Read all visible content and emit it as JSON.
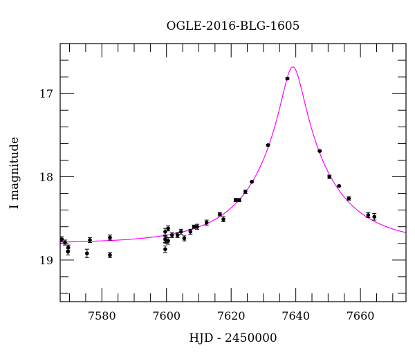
{
  "chart_data": {
    "type": "scatter",
    "title": "OGLE-2016-BLG-1605",
    "xlabel": "HJD - 2450000",
    "ylabel": "I magnitude",
    "xlim": [
      7567.1,
      7674.1
    ],
    "ylim": [
      19.5,
      16.4
    ],
    "y_inverted": true,
    "x_ticks": [
      7580,
      7600,
      7620,
      7640,
      7660
    ],
    "x_tick_labels": [
      "7580",
      "7600",
      "7620",
      "7640",
      "7660"
    ],
    "x_minor_step": 5,
    "y_ticks": [
      17,
      18,
      19
    ],
    "y_tick_labels": [
      "17",
      "18",
      "19"
    ],
    "y_minor_step": 0.2,
    "grid": false,
    "series": [
      {
        "name": "data",
        "kind": "points_with_errorbars",
        "color": "#000000",
        "x": [
          7567.6,
          7568.6,
          7569.6,
          7569.5,
          7575.4,
          7576.3,
          7582.5,
          7582.5,
          7599.6,
          7599.6,
          7599.7,
          7599.6,
          7600.5,
          7600.5,
          7601.7,
          7603.4,
          7604.5,
          7605.5,
          7607.4,
          7608.5,
          7609.5,
          7612.4,
          7616.5,
          7617.6,
          7621.4,
          7622.5,
          7624.4,
          7626.4,
          7631.4,
          7637.4,
          7647.4,
          7650.4,
          7653.4,
          7656.4,
          7662.4,
          7664.3
        ],
        "y": [
          18.75,
          18.79,
          18.85,
          18.9,
          18.92,
          18.76,
          18.73,
          18.94,
          18.66,
          18.75,
          18.76,
          18.87,
          18.62,
          18.77,
          18.7,
          18.7,
          18.66,
          18.74,
          18.66,
          18.6,
          18.6,
          18.55,
          18.45,
          18.51,
          18.28,
          18.28,
          18.18,
          18.06,
          17.62,
          16.82,
          17.69,
          18.0,
          18.11,
          18.26,
          18.46,
          18.48
        ],
        "err": [
          0.03,
          0.03,
          0.03,
          0.04,
          0.05,
          0.03,
          0.03,
          0.03,
          0.04,
          0.04,
          0.04,
          0.04,
          0.03,
          0.04,
          0.03,
          0.03,
          0.03,
          0.03,
          0.03,
          0.02,
          0.03,
          0.03,
          0.02,
          0.03,
          0.02,
          0.02,
          0.02,
          0.01,
          0.01,
          0.01,
          0.01,
          0.02,
          0.01,
          0.02,
          0.03,
          0.04
        ]
      },
      {
        "name": "model",
        "kind": "line",
        "color": "#ff00ff",
        "model": "point-lens",
        "t0": 7639.1,
        "u0": 0.143,
        "tE": 23,
        "baseline": 18.8
      }
    ]
  }
}
